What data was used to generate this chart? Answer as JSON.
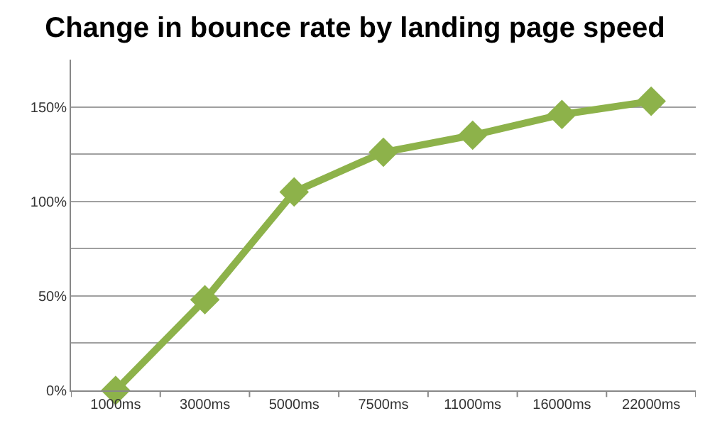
{
  "chart_data": {
    "type": "line",
    "title": "Change in bounce rate by landing page speed",
    "categories": [
      "1000ms",
      "3000ms",
      "5000ms",
      "7500ms",
      "11000ms",
      "16000ms",
      "22000ms"
    ],
    "series": [
      {
        "color": "#8db24a",
        "values": [
          0,
          48,
          105,
          126,
          135,
          146,
          153
        ]
      }
    ],
    "ylim": [
      0,
      175
    ],
    "yticks": [
      {
        "value": 0,
        "label": "0%"
      },
      {
        "value": 25,
        "label": null
      },
      {
        "value": 50,
        "label": "50%"
      },
      {
        "value": 75,
        "label": null
      },
      {
        "value": 100,
        "label": "100%"
      },
      {
        "value": 125,
        "label": null
      },
      {
        "value": 150,
        "label": "150%"
      }
    ],
    "grid": "y",
    "marker": "diamond",
    "line_style": "solid"
  }
}
